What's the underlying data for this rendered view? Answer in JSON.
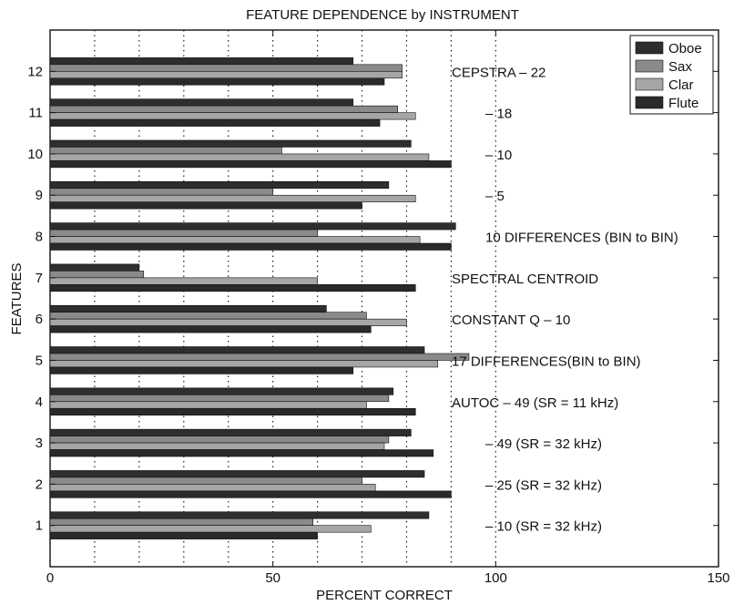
{
  "chart_data": {
    "type": "bar",
    "orientation": "horizontal",
    "title": "FEATURE DEPENDENCE by INSTRUMENT",
    "xlabel": "PERCENT CORRECT",
    "ylabel": "FEATURES",
    "xlim": [
      0,
      150
    ],
    "ylim": [
      0,
      13
    ],
    "x_ticks": [
      "0",
      "50",
      "100",
      "150"
    ],
    "categories": [
      "1",
      "2",
      "3",
      "4",
      "5",
      "6",
      "7",
      "8",
      "9",
      "10",
      "11",
      "12"
    ],
    "grid": "x-dotted",
    "legend_position": "top-right",
    "series": [
      {
        "name": "Oboe",
        "color": "#2e2e2e",
        "values": [
          85,
          84,
          81,
          77,
          84,
          62,
          20,
          91,
          76,
          81,
          68,
          68
        ]
      },
      {
        "name": "Sax",
        "color": "#8a8a8a",
        "values": [
          59,
          70,
          76,
          76,
          94,
          71,
          21,
          60,
          50,
          52,
          78,
          79
        ]
      },
      {
        "name": "Clar",
        "color": "#a6a6a6",
        "values": [
          72,
          73,
          75,
          71,
          87,
          80,
          60,
          83,
          82,
          85,
          82,
          79
        ]
      },
      {
        "name": "Flute",
        "color": "#2a2a2a",
        "values": [
          60,
          90,
          86,
          82,
          68,
          72,
          82,
          90,
          70,
          90,
          74,
          75
        ]
      }
    ],
    "annotations": [
      "– 10 (SR = 32 kHz)",
      "– 25 (SR = 32 kHz)",
      "– 49 (SR = 32 kHz)",
      "AUTOC – 49 (SR = 11 kHz)",
      "17 DIFFERENCES(BIN to BIN)",
      "CONSTANT Q – 10",
      "SPECTRAL CENTROID",
      "10 DIFFERENCES (BIN to BIN)",
      "– 5",
      "– 10",
      "– 18",
      "CEPSTRA – 22"
    ]
  }
}
